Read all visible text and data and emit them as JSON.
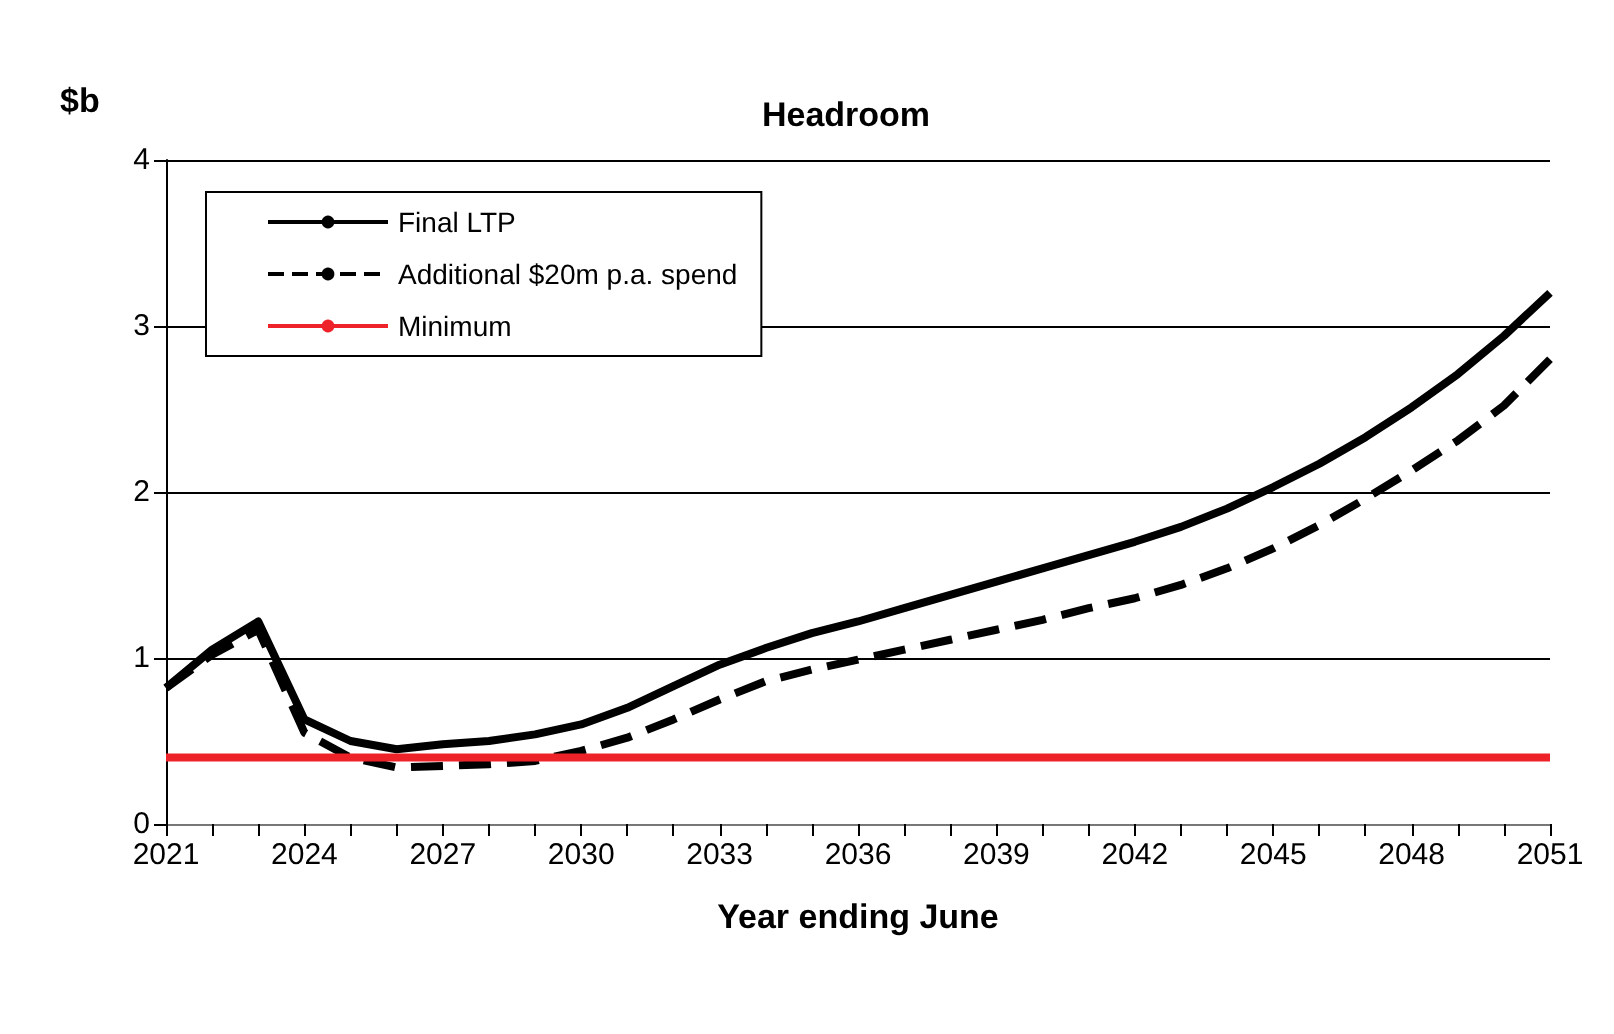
{
  "chart_data": {
    "type": "line",
    "title": "Headroom",
    "ylabel": "$b",
    "xlabel": "Year ending June",
    "x": [
      2021,
      2022,
      2023,
      2024,
      2025,
      2026,
      2027,
      2028,
      2029,
      2030,
      2031,
      2032,
      2033,
      2034,
      2035,
      2036,
      2037,
      2038,
      2039,
      2040,
      2041,
      2042,
      2043,
      2044,
      2045,
      2046,
      2047,
      2048,
      2049,
      2050,
      2051
    ],
    "series": [
      {
        "name": "Final LTP",
        "color": "#000000",
        "line_style": "solid",
        "values": [
          0.82,
          1.05,
          1.22,
          0.63,
          0.5,
          0.45,
          0.48,
          0.5,
          0.54,
          0.6,
          0.7,
          0.83,
          0.96,
          1.06,
          1.15,
          1.22,
          1.3,
          1.38,
          1.46,
          1.54,
          1.62,
          1.7,
          1.79,
          1.9,
          2.03,
          2.17,
          2.33,
          2.51,
          2.71,
          2.94,
          3.2
        ]
      },
      {
        "name": "Additional $20m p.a. spend",
        "color": "#000000",
        "line_style": "dashed",
        "values": [
          0.82,
          1.02,
          1.17,
          0.55,
          0.4,
          0.34,
          0.35,
          0.36,
          0.38,
          0.44,
          0.52,
          0.63,
          0.75,
          0.86,
          0.93,
          0.99,
          1.05,
          1.11,
          1.17,
          1.23,
          1.3,
          1.36,
          1.44,
          1.54,
          1.66,
          1.8,
          1.96,
          2.13,
          2.31,
          2.52,
          2.8
        ]
      },
      {
        "name": "Minimum",
        "color": "#ee2229",
        "line_style": "solid",
        "values": [
          0.4,
          0.4,
          0.4,
          0.4,
          0.4,
          0.4,
          0.4,
          0.4,
          0.4,
          0.4,
          0.4,
          0.4,
          0.4,
          0.4,
          0.4,
          0.4,
          0.4,
          0.4,
          0.4,
          0.4,
          0.4,
          0.4,
          0.4,
          0.4,
          0.4,
          0.4,
          0.4,
          0.4,
          0.4,
          0.4,
          0.4
        ]
      }
    ],
    "xlim": [
      2021,
      2051
    ],
    "xticks": [
      2021,
      {
        "value": 2022,
        "label": null
      },
      {
        "value": 2023,
        "label": null
      },
      2024,
      {
        "value": 2025,
        "label": null
      },
      {
        "value": 2026,
        "label": null
      },
      2027,
      {
        "value": 2028,
        "label": null
      },
      {
        "value": 2029,
        "label": null
      },
      2030,
      {
        "value": 2031,
        "label": null
      },
      {
        "value": 2032,
        "label": null
      },
      2033,
      {
        "value": 2034,
        "label": null
      },
      {
        "value": 2035,
        "label": null
      },
      2036,
      {
        "value": 2037,
        "label": null
      },
      {
        "value": 2038,
        "label": null
      },
      2039,
      {
        "value": 2040,
        "label": null
      },
      {
        "value": 2041,
        "label": null
      },
      2042,
      {
        "value": 2043,
        "label": null
      },
      {
        "value": 2044,
        "label": null
      },
      2045,
      {
        "value": 2046,
        "label": null
      },
      {
        "value": 2047,
        "label": null
      },
      2048,
      {
        "value": 2049,
        "label": null
      },
      {
        "value": 2050,
        "label": null
      },
      2051
    ],
    "ylim": [
      0,
      4
    ],
    "yticks": [
      0,
      1,
      2,
      3,
      4
    ],
    "grid": "y",
    "legend": "top left",
    "marker": "none"
  }
}
